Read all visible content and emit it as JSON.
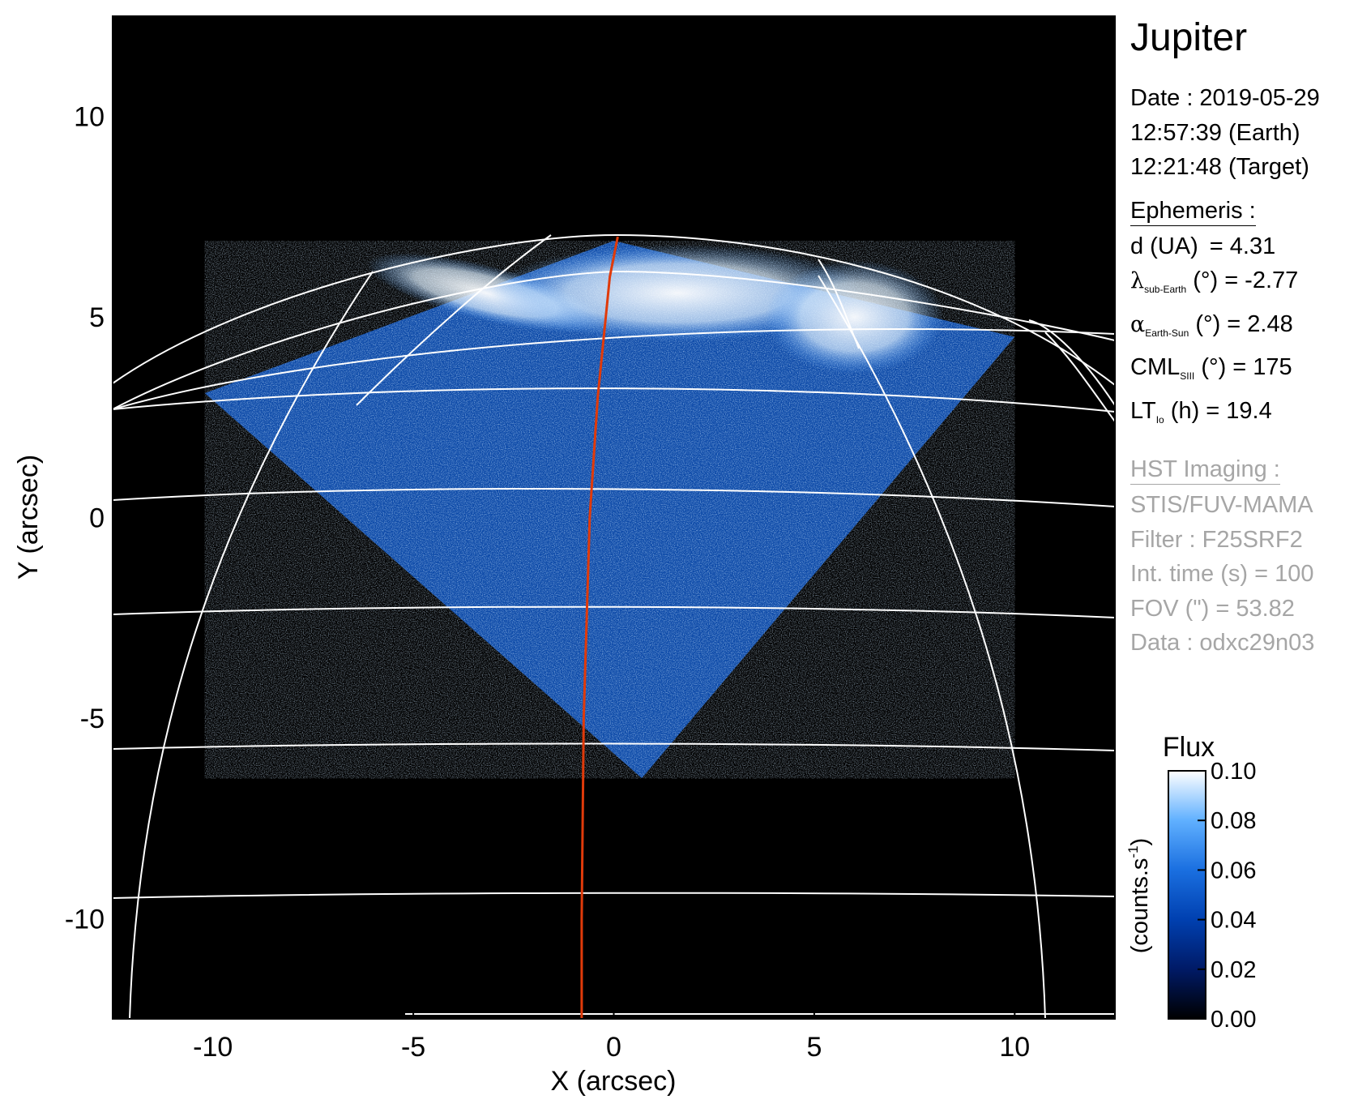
{
  "chart_data": {
    "type": "heatmap",
    "xlabel": "X (arcsec)",
    "ylabel": "Y (arcsec)",
    "xlim": [
      -12.5,
      12.5
    ],
    "ylim": [
      -12.5,
      12.5
    ],
    "x_ticks": [
      -10,
      -5,
      0,
      5,
      10
    ],
    "y_ticks": [
      -10,
      -5,
      0,
      5,
      10
    ],
    "x_tick_labels": [
      "-10",
      "-5",
      "0",
      "5",
      "10"
    ],
    "y_tick_labels": [
      "-10",
      "-5",
      "0",
      "5",
      "10"
    ],
    "image_footprint": [
      [
        -10.2,
        3.1
      ],
      [
        0.7,
        -6.5
      ],
      [
        10.0,
        4.5
      ],
      [
        0.0,
        6.9
      ]
    ],
    "cml_line": {
      "color": "#e03a0a",
      "points": [
        [
          -0.8,
          -12.5
        ],
        [
          -0.8,
          -10
        ],
        [
          -0.75,
          -5
        ],
        [
          -0.6,
          0
        ],
        [
          -0.4,
          3
        ],
        [
          -0.1,
          6
        ],
        [
          0.1,
          7.0
        ]
      ]
    },
    "colorbar": {
      "title": "Flux",
      "label": "(counts.s",
      "label_sup": "-1",
      "label_close": ")",
      "range": [
        0.0,
        0.1
      ],
      "ticks": [
        "0.00",
        "0.02",
        "0.04",
        "0.06",
        "0.08",
        "0.10"
      ],
      "tick_values": [
        0.0,
        0.02,
        0.04,
        0.06,
        0.08,
        0.1
      ],
      "colors": [
        "#000000",
        "#001a66",
        "#0040b0",
        "#1a6fe0",
        "#60b0ff",
        "#ffffff"
      ]
    },
    "grid": true
  },
  "info": {
    "title": "Jupiter",
    "date_line": "Date : 2019-05-29",
    "earth_time": "12:57:39 (Earth)",
    "target_time": "12:21:48 (Target)",
    "ephemeris_head": "Ephemeris :",
    "d_label": "d (UA)",
    "d_value": "= 4.31",
    "lambda_symbol": "λ",
    "lambda_sub": "sub-Earth",
    "lambda_rest": "(°) = -2.77",
    "alpha_symbol": "α",
    "alpha_sub": "Earth-Sun",
    "alpha_rest": "(°) = 2.48",
    "cml_main": "CML",
    "cml_sub": "SIII",
    "cml_rest": "(°) = 175",
    "lt_main": "LT",
    "lt_sub": "Io",
    "lt_rest": "(h) = 19.4",
    "hst_head": "HST Imaging :",
    "instrument": "STIS/FUV-MAMA",
    "filter": "Filter : F25SRF2",
    "int_time": "Int. time (s) = 100",
    "fov": "FOV (\") = 53.82",
    "data_id": "Data : odxc29n03"
  }
}
